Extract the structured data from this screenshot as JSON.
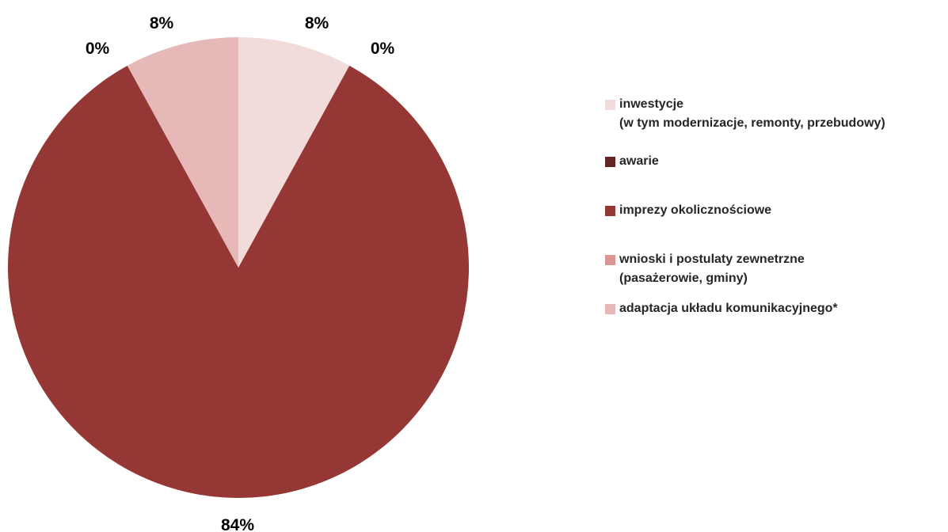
{
  "chart_data": {
    "type": "pie",
    "title": "",
    "start_angle_deg": 0,
    "direction": "clockwise",
    "slices": [
      {
        "name_lines": [
          "inwestycje",
          "(w tym modernizacje, remonty, przebudowy)"
        ],
        "value": 8,
        "label": "8%",
        "color": "#F2DCDB"
      },
      {
        "name_lines": [
          "awarie"
        ],
        "value": 0,
        "label": "0%",
        "color": "#632523"
      },
      {
        "name_lines": [
          "imprezy okolicznościowe"
        ],
        "value": 84,
        "label": "84%",
        "color": "#953735"
      },
      {
        "name_lines": [
          "wnioski i postulaty zewnetrzne",
          "(pasażerowie, gminy)"
        ],
        "value": 0,
        "label": "0%",
        "color": "#D99694"
      },
      {
        "name_lines": [
          "adaptacja układu komunikacyjnego*"
        ],
        "value": 8,
        "label": "8%",
        "color": "#E6B9B8"
      }
    ],
    "legend_position": "right"
  }
}
